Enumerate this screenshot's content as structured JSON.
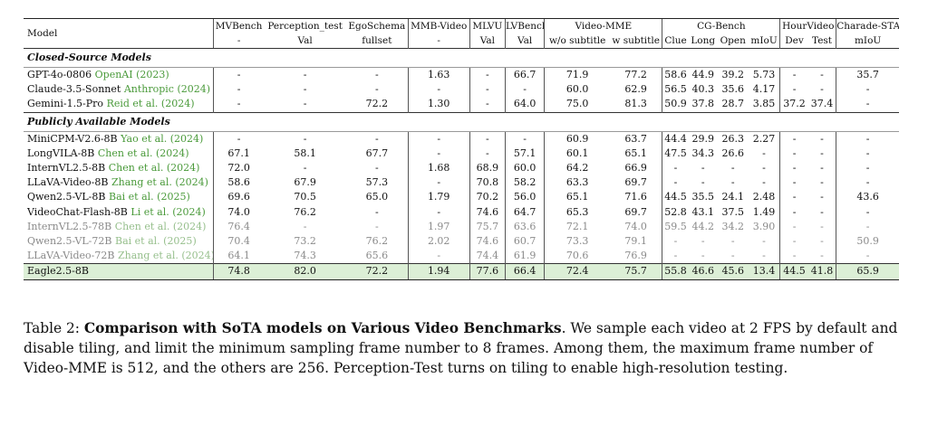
{
  "header": {
    "model_label": "Model",
    "benchmarks": [
      {
        "name": "MVBench",
        "sub": "-"
      },
      {
        "name": "Perception_test",
        "sub": "Val"
      },
      {
        "name": "EgoSchema",
        "sub": "fullset"
      },
      {
        "name": "MMB-Video",
        "sub": "-"
      },
      {
        "name": "MLVU",
        "sub": "Val"
      },
      {
        "name": "LVBench",
        "sub": "Val"
      },
      {
        "name": "Video-MME",
        "subs": [
          "w/o subtitle",
          "w subtitle"
        ]
      },
      {
        "name": "CG-Bench",
        "subs": [
          "Clue",
          "Long",
          "Open",
          "mIoU"
        ]
      },
      {
        "name": "HourVideo",
        "subs": [
          "Dev",
          "Test"
        ]
      },
      {
        "name": "Charade-STA",
        "sub": "mIoU"
      }
    ]
  },
  "sections": [
    {
      "title": "Closed-Source Models",
      "rows": [
        {
          "model": "GPT-4o-0806",
          "cite_pre": "OpenAI (",
          "cite_year": "2023",
          "cite_post": ")",
          "values": [
            "-",
            "-",
            "-",
            "1.63",
            "-",
            "66.7",
            "71.9",
            "77.2",
            "58.6",
            "44.9",
            "39.2",
            "5.73",
            "-",
            "-",
            "35.7"
          ]
        },
        {
          "model": "Claude-3.5-Sonnet",
          "cite_pre": "Anthropic (",
          "cite_year": "2024",
          "cite_post": ")",
          "values": [
            "-",
            "-",
            "-",
            "-",
            "-",
            "-",
            "60.0",
            "62.9",
            "56.5",
            "40.3",
            "35.6",
            "4.17",
            "-",
            "-",
            "-"
          ]
        },
        {
          "model": "Gemini-1.5-Pro",
          "cite_pre": "Reid et al. (",
          "cite_year": "2024",
          "cite_post": ")",
          "values": [
            "-",
            "-",
            "72.2",
            "1.30",
            "-",
            "64.0",
            "75.0",
            "81.3",
            "50.9",
            "37.8",
            "28.7",
            "3.85",
            "37.2",
            "37.4",
            "-"
          ]
        }
      ]
    },
    {
      "title": "Publicly Available Models",
      "rows": [
        {
          "model": "MiniCPM-V2.6-8B",
          "cite_pre": "Yao et al. (",
          "cite_year": "2024",
          "cite_post": ")",
          "values": [
            "-",
            "-",
            "-",
            "-",
            "-",
            "-",
            "60.9",
            "63.7",
            "44.4",
            "29.9",
            "26.3",
            "2.27",
            "-",
            "-",
            "-"
          ]
        },
        {
          "model": "LongVILA-8B",
          "cite_pre": "Chen et al. (",
          "cite_year": "2024",
          "cite_post": ")",
          "values": [
            "67.1",
            "58.1",
            "67.7",
            "-",
            "-",
            "57.1",
            "60.1",
            "65.1",
            "47.5",
            "34.3",
            "26.6",
            "-",
            "-",
            "-",
            "-"
          ]
        },
        {
          "model": "InternVL2.5-8B",
          "cite_pre": "Chen et al. (",
          "cite_year": "2024",
          "cite_post": ")",
          "values": [
            "72.0",
            "-",
            "-",
            "1.68",
            "68.9",
            "60.0",
            "64.2",
            "66.9",
            "-",
            "-",
            "-",
            "-",
            "-",
            "-",
            "-"
          ]
        },
        {
          "model": "LLaVA-Video-8B",
          "cite_pre": "Zhang et al. (",
          "cite_year": "2024",
          "cite_post": ")",
          "values": [
            "58.6",
            "67.9",
            "57.3",
            "-",
            "70.8",
            "58.2",
            "63.3",
            "69.7",
            "-",
            "-",
            "-",
            "-",
            "-",
            "-",
            "-"
          ]
        },
        {
          "model": "Qwen2.5-VL-8B",
          "cite_pre": "Bai et al. (",
          "cite_year": "2025",
          "cite_post": ")",
          "values": [
            "69.6",
            "70.5",
            "65.0",
            "1.79",
            "70.2",
            "56.0",
            "65.1",
            "71.6",
            "44.5",
            "35.5",
            "24.1",
            "2.48",
            "-",
            "-",
            "43.6"
          ]
        },
        {
          "model": "VideoChat-Flash-8B",
          "cite_pre": "Li et al. (",
          "cite_year": "2024",
          "cite_post": ")",
          "values": [
            "74.0",
            "76.2",
            "-",
            "-",
            "74.6",
            "64.7",
            "65.3",
            "69.7",
            "52.8",
            "43.1",
            "37.5",
            "1.49",
            "-",
            "-",
            "-"
          ]
        },
        {
          "model": "InternVL2.5-78B",
          "cite_pre": "Chen et al. (",
          "cite_year": "2024",
          "cite_post": ")",
          "gray": true,
          "values": [
            "76.4",
            "-",
            "-",
            "1.97",
            "75.7",
            "63.6",
            "72.1",
            "74.0",
            "59.5",
            "44.2",
            "34.2",
            "3.90",
            "-",
            "-",
            "-"
          ]
        },
        {
          "model": "Qwen2.5-VL-72B",
          "cite_pre": "Bai et al. (",
          "cite_year": "2025",
          "cite_post": ")",
          "gray": true,
          "values": [
            "70.4",
            "73.2",
            "76.2",
            "2.02",
            "74.6",
            "60.7",
            "73.3",
            "79.1",
            "-",
            "-",
            "-",
            "-",
            "-",
            "-",
            "50.9"
          ]
        },
        {
          "model": "LLaVA-Video-72B",
          "cite_pre": "Zhang et al. (",
          "cite_year": "2024",
          "cite_post": ")",
          "gray": true,
          "values": [
            "64.1",
            "74.3",
            "65.6",
            "-",
            "74.4",
            "61.9",
            "70.6",
            "76.9",
            "-",
            "-",
            "-",
            "-",
            "-",
            "-",
            "-"
          ]
        }
      ]
    }
  ],
  "ours": {
    "model": "Eagle2.5-8B",
    "values": [
      "74.8",
      "82.0",
      "72.2",
      "1.94",
      "77.6",
      "66.4",
      "72.4",
      "75.7",
      "55.8",
      "46.6",
      "45.6",
      "13.4",
      "44.5",
      "41.8",
      "65.9"
    ],
    "highlight_color": "#dcefd6"
  },
  "citation_color": "#4a9a3a",
  "caption": {
    "label": "Table 2: ",
    "title": "Comparison with SoTA models on Various Video Benchmarks",
    "text": ". We sample each video at 2 FPS by default and disable tiling, and limit the minimum sampling frame number to 8 frames. Among them, the maximum frame number of Video-MME is 512, and the others are 256. Perception-Test turns on tiling to enable high-resolution testing."
  }
}
